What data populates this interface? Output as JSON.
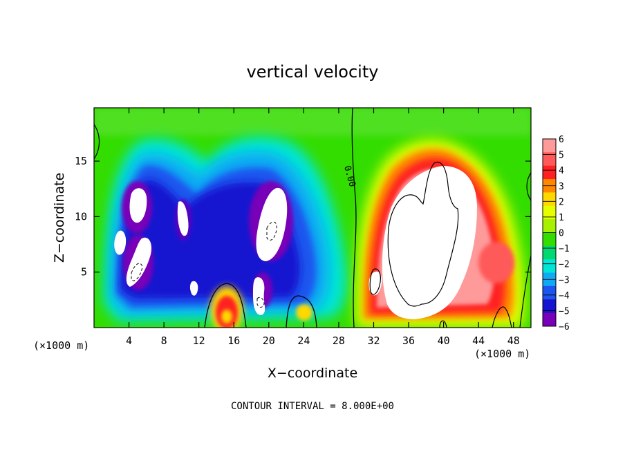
{
  "chart_data": {
    "type": "heatmap",
    "title": "vertical velocity",
    "xlabel": "X−coordinate",
    "ylabel": "Z−coordinate",
    "x_units_left": "(×1000 m)",
    "x_units_right": "(×1000 m)",
    "contour_note": "CONTOUR INTERVAL = 8.000E+00",
    "contour_label": "0.00",
    "xlim": [
      0,
      50
    ],
    "ylim": [
      0,
      19.8
    ],
    "x_ticks": [
      4,
      8,
      12,
      16,
      20,
      24,
      28,
      32,
      36,
      40,
      44,
      48
    ],
    "y_ticks": [
      5,
      10,
      15
    ],
    "colorbar": {
      "levels": [
        "6",
        "5",
        "4",
        "3",
        "2",
        "1",
        "0",
        "−1",
        "−2",
        "−3",
        "−4",
        "−5",
        "−6"
      ],
      "colors": [
        "#ff9a9a",
        "#ff5a5a",
        "#ff2020",
        "#ff8800",
        "#ffd800",
        "#e6ff00",
        "#a6f000",
        "#33dd00",
        "#00d870",
        "#00e6d6",
        "#11a8f4",
        "#1d55ee",
        "#1414d0",
        "#7800b8"
      ]
    },
    "features": [
      {
        "kind": "updraft_core",
        "x_range": [
          34,
          45
        ],
        "z_range": [
          2,
          15
        ],
        "sign": "positive",
        "value": "> 6"
      },
      {
        "kind": "updraft_shell",
        "x_range": [
          31,
          49
        ],
        "z_range": [
          1,
          17.5
        ],
        "sign": "positive"
      },
      {
        "kind": "downdraft",
        "x_range": [
          1,
          30
        ],
        "z_range": [
          1,
          17
        ],
        "sign": "negative"
      },
      {
        "kind": "downdraft_core",
        "x_range": [
          2,
          6
        ],
        "z_range": [
          3.5,
          12.5
        ],
        "sign": "negative",
        "value": "< -6"
      },
      {
        "kind": "downdraft_core",
        "x_range": [
          9,
          11
        ],
        "z_range": [
          8,
          11
        ],
        "sign": "negative",
        "value": "< -6"
      },
      {
        "kind": "downdraft_core",
        "x_range": [
          16,
          22
        ],
        "z_range": [
          2,
          11.5
        ],
        "sign": "negative",
        "value": "< -6"
      },
      {
        "kind": "updraft_small",
        "x_range": [
          14,
          17
        ],
        "z_range": [
          0,
          3
        ],
        "sign": "positive"
      },
      {
        "kind": "updraft_small",
        "x_range": [
          23,
          24
        ],
        "z_range": [
          0,
          1.8
        ],
        "sign": "positive"
      }
    ]
  }
}
